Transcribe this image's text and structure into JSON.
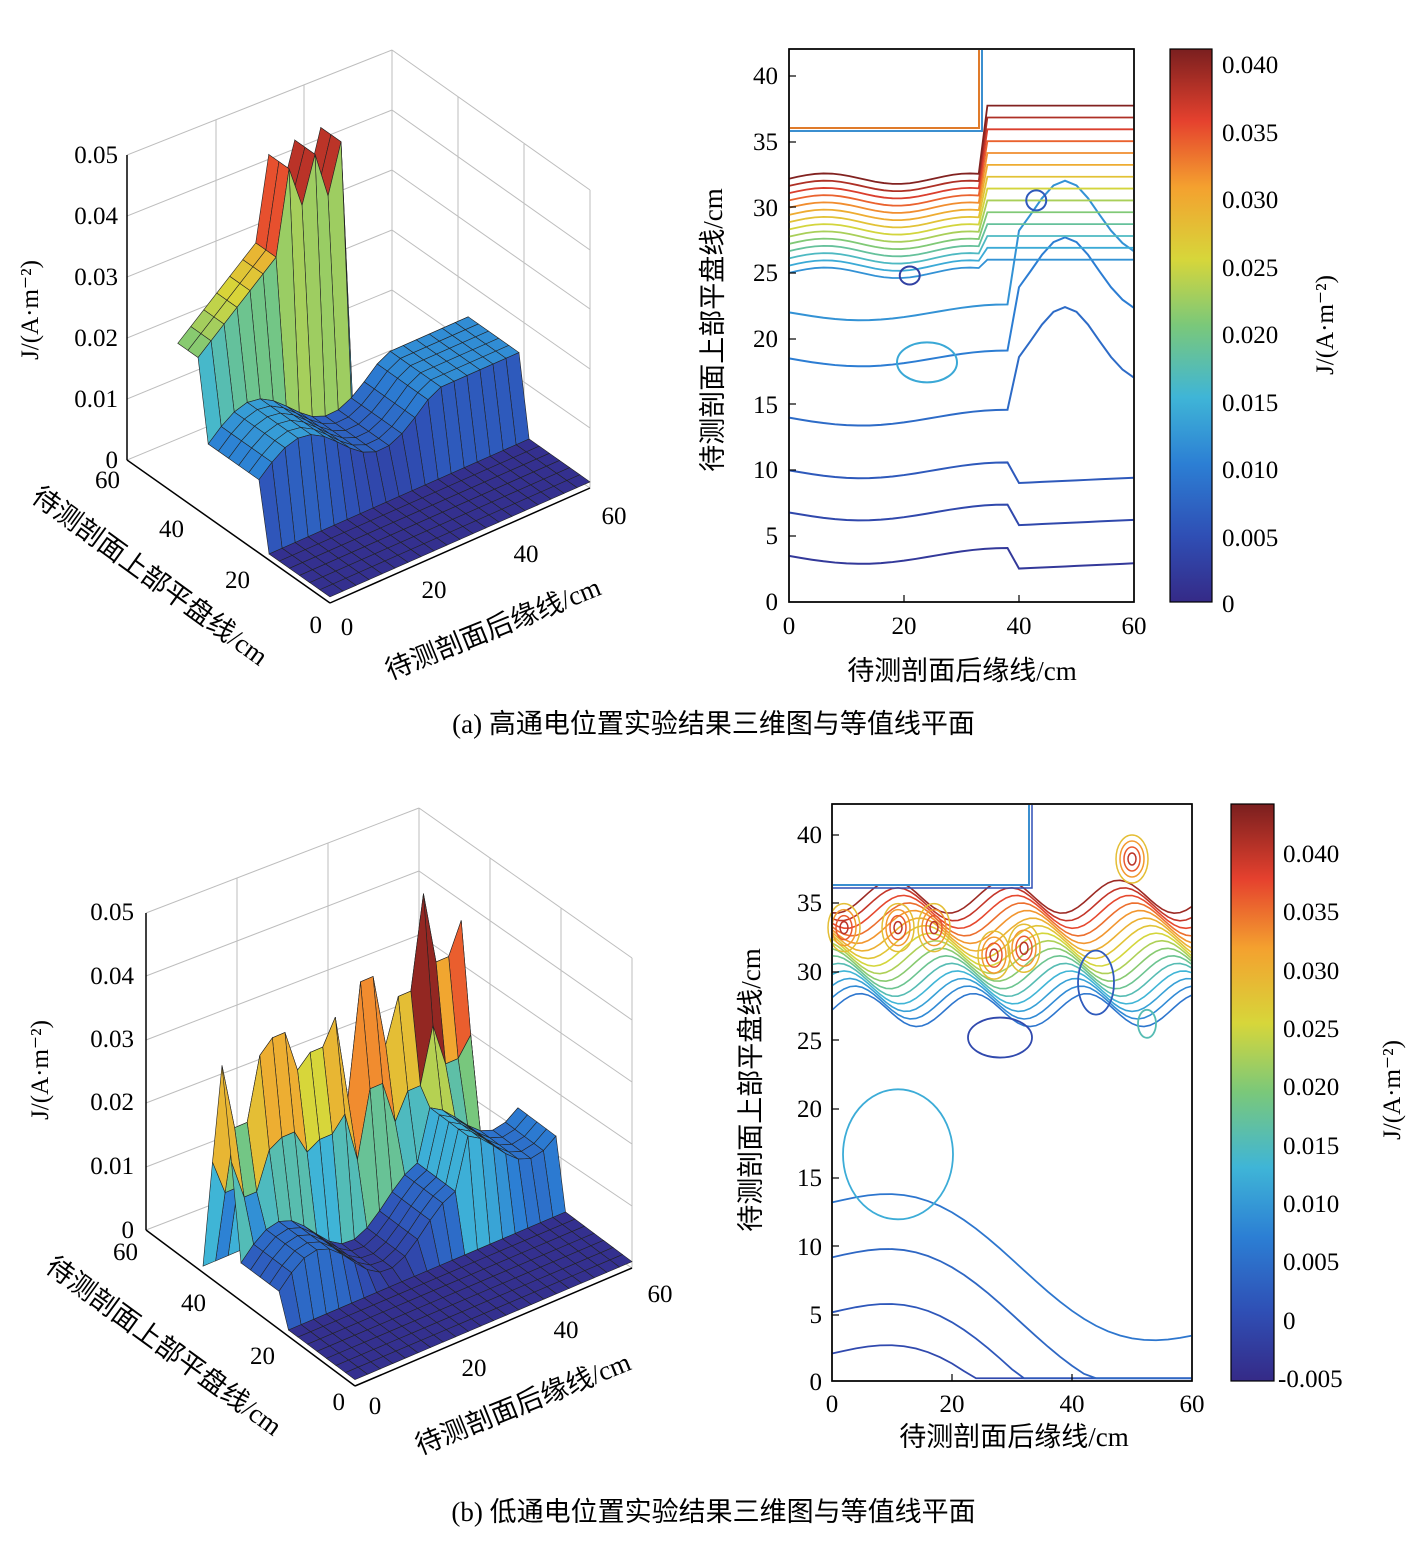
{
  "panels": [
    {
      "caption": "(a) 高通电位置实验结果三维图与等值线平面",
      "surface3d": {
        "zlabel": "J/(A·m⁻²)",
        "xlabel": "待测剖面后缘线/cm",
        "ylabel": "待测剖面上部平盘线/cm",
        "ztick_labels": [
          "0.05",
          "0.04",
          "0.03",
          "0.02",
          "0.01",
          "0"
        ],
        "xtick_labels": [
          "0",
          "20",
          "40",
          "60"
        ],
        "ytick_labels": [
          "60",
          "40",
          "20",
          "0"
        ]
      },
      "contour": {
        "xlabel": "待测剖面后缘线/cm",
        "ylabel": "待测剖面上部平盘线/cm",
        "xtick_labels": [
          "0",
          "20",
          "40",
          "60"
        ],
        "ytick_labels": [
          "40",
          "35",
          "30",
          "25",
          "20",
          "15",
          "10",
          "5",
          "0"
        ]
      },
      "colorbar": {
        "label": "J/(A·m⁻²)",
        "tick_labels": [
          "0.040",
          "0.035",
          "0.030",
          "0.025",
          "0.020",
          "0.015",
          "0.010",
          "0.005",
          "0"
        ]
      }
    },
    {
      "caption": "(b) 低通电位置实验结果三维图与等值线平面",
      "surface3d": {
        "zlabel": "J/(A·m⁻²)",
        "xlabel": "待测剖面后缘线/cm",
        "ylabel": "待测剖面上部平盘线/cm",
        "ztick_labels": [
          "0.05",
          "0.04",
          "0.03",
          "0.02",
          "0.01",
          "0"
        ],
        "xtick_labels": [
          "0",
          "20",
          "40",
          "60"
        ],
        "ytick_labels": [
          "60",
          "40",
          "20",
          "0"
        ]
      },
      "contour": {
        "xlabel": "待测剖面后缘线/cm",
        "ylabel": "待测剖面上部平盘线/cm",
        "xtick_labels": [
          "0",
          "20",
          "40",
          "60"
        ],
        "ytick_labels": [
          "40",
          "35",
          "30",
          "25",
          "20",
          "15",
          "10",
          "5",
          "0"
        ]
      },
      "colorbar": {
        "label": "J/(A·m⁻²)",
        "tick_labels": [
          "0.040",
          "0.035",
          "0.030",
          "0.025",
          "0.020",
          "0.015",
          "0.010",
          "0.005",
          "0",
          "-0.005"
        ]
      }
    }
  ],
  "chart_data": [
    {
      "type": "surface3d",
      "panel": "a",
      "x_range": [
        0,
        60
      ],
      "y_range": [
        0,
        60
      ],
      "z_range": [
        0,
        0.05
      ],
      "xlabel": "待测剖面后缘线/cm",
      "ylabel": "待测剖面上部平盘线/cm",
      "zlabel": "J/(A·m⁻²)",
      "ridges": [
        {
          "y_start": 36,
          "x_range": [
            0,
            20
          ],
          "z_range": [
            0.025,
            0.04
          ]
        },
        {
          "y_start": 36,
          "x_range": [
            20,
            33
          ],
          "z_range": [
            0.045,
            0.05
          ]
        },
        {
          "y_range": [
            20,
            36
          ],
          "x_range": [
            0,
            40
          ],
          "z": 0.015
        },
        {
          "y_range": [
            0,
            20
          ],
          "x_range": [
            0,
            60
          ],
          "z": 0.002
        }
      ]
    },
    {
      "type": "contour",
      "panel": "a",
      "x_range": [
        0,
        60
      ],
      "y_range": [
        0,
        42
      ],
      "xlabel": "待测剖面后缘线/cm",
      "ylabel": "待测剖面上部平盘线/cm",
      "colorbar_range": [
        0,
        0.041
      ],
      "cutout": {
        "x_range": [
          0,
          33
        ],
        "y_range": [
          36,
          42
        ]
      }
    },
    {
      "type": "surface3d",
      "panel": "b",
      "x_range": [
        0,
        60
      ],
      "y_range": [
        0,
        60
      ],
      "z_range": [
        0,
        0.05
      ],
      "xlabel": "待测剖面后缘线/cm",
      "ylabel": "待测剖面上部平盘线/cm",
      "zlabel": "J/(A·m⁻²)",
      "peaks_x": [
        0,
        4,
        8,
        12,
        16,
        20,
        24,
        28,
        32,
        36,
        40,
        44,
        48,
        52
      ],
      "peaks_z": [
        0.036,
        0.025,
        0.035,
        0.037,
        0.03,
        0.032,
        0.036,
        0.022,
        0.04,
        0.028,
        0.035,
        0.05,
        0.038,
        0.043
      ]
    },
    {
      "type": "contour",
      "panel": "b",
      "x_range": [
        0,
        60
      ],
      "y_range": [
        0,
        42
      ],
      "xlabel": "待测剖面后缘线/cm",
      "ylabel": "待测剖面上部平盘线/cm",
      "colorbar_range": [
        -0.005,
        0.044
      ],
      "cutout": {
        "x_range": [
          0,
          33
        ],
        "y_range": [
          36,
          42
        ]
      }
    }
  ]
}
